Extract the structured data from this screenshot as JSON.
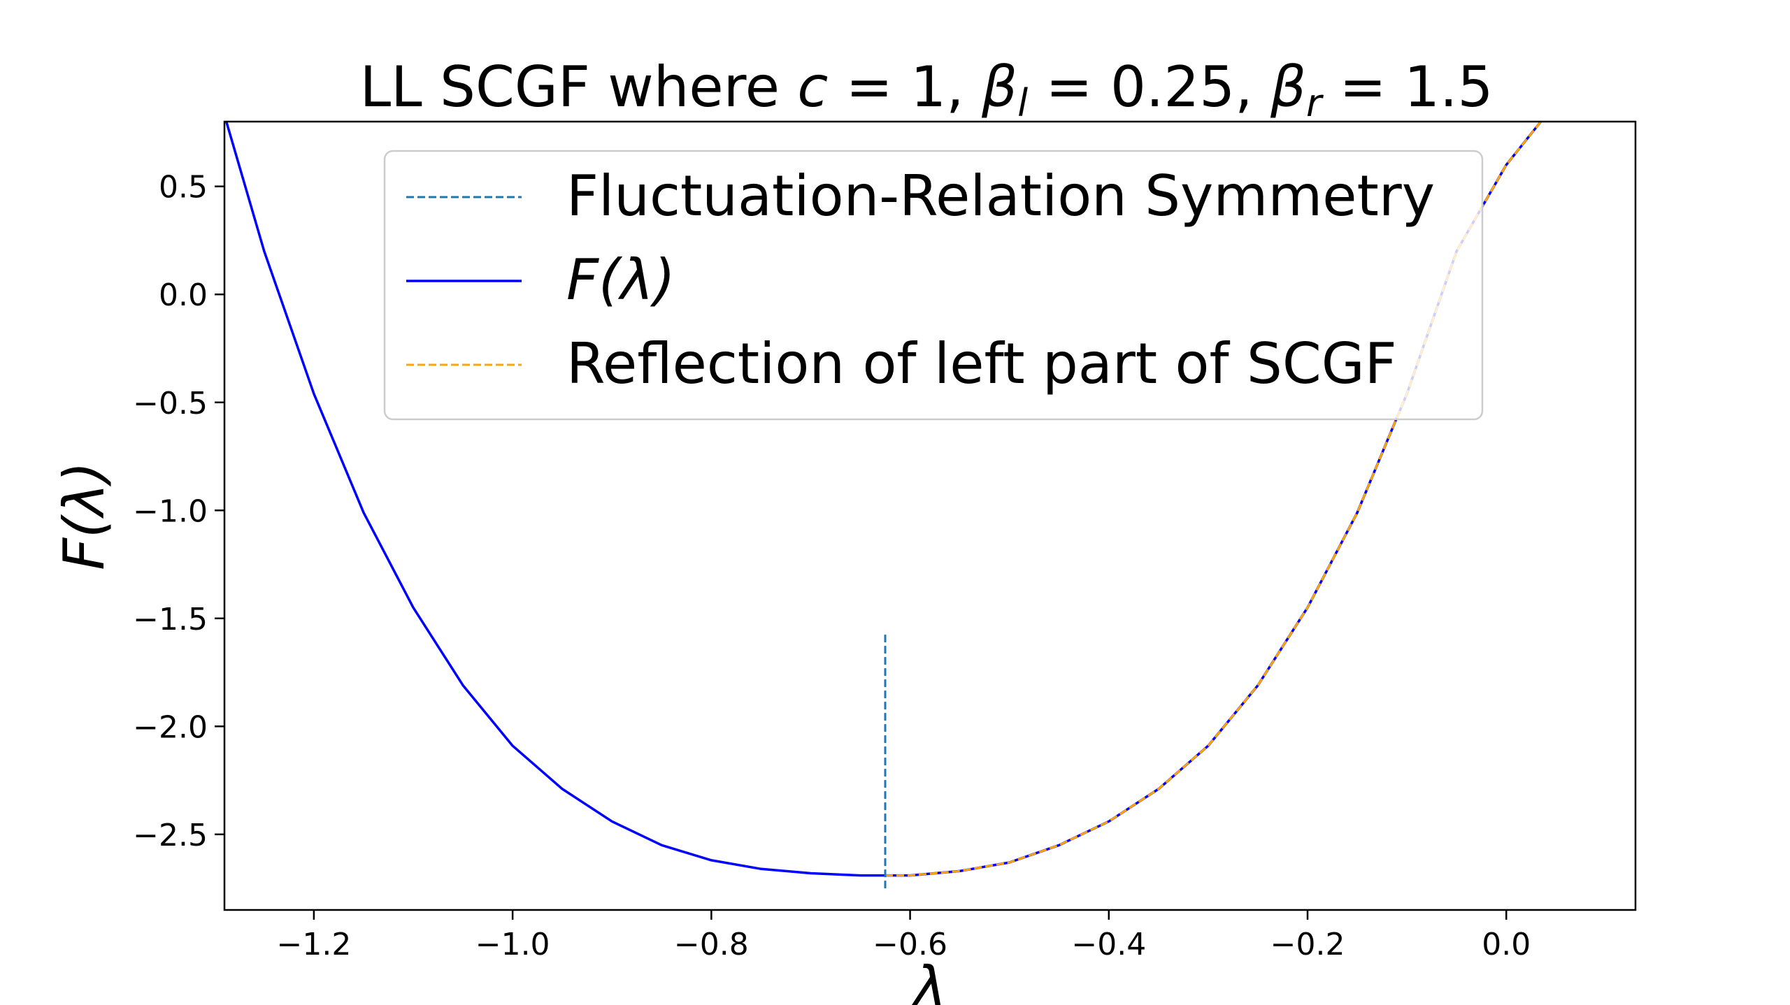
{
  "chart_data": {
    "type": "line",
    "title": {
      "prefix": "LL SCGF where ",
      "c_var": "c",
      "c_val": " = 1, ",
      "bl_var": "β",
      "bl_sub": "l",
      "bl_val": " = 0.25, ",
      "br_var": "β",
      "br_sub": "r",
      "br_val": " = 1.5"
    },
    "xlabel": "λ",
    "ylabel": "F(λ)",
    "xlim": [
      -1.29,
      0.13
    ],
    "ylim": [
      -2.85,
      0.8
    ],
    "xticks": [
      -1.2,
      -1.0,
      -0.8,
      -0.6,
      -0.4,
      -0.2,
      0.0
    ],
    "xtick_labels": [
      "−1.2",
      "−1.0",
      "−0.8",
      "−0.6",
      "−0.4",
      "−0.2",
      "0.0"
    ],
    "yticks": [
      0.5,
      0.0,
      -0.5,
      -1.0,
      -1.5,
      -2.0,
      -2.5
    ],
    "ytick_labels": [
      "0.5",
      "0.0",
      "−0.5",
      "−1.0",
      "−1.5",
      "−2.0",
      "−2.5"
    ],
    "grid": false,
    "legend_position": "top-center",
    "series": [
      {
        "name": "Fluctuation-Relation Symmetry",
        "style": "dashed",
        "color": "#1f77b4",
        "x": [
          -0.625,
          -0.625
        ],
        "y": [
          -2.75,
          -1.57
        ]
      },
      {
        "name": "F(λ)",
        "style": "solid",
        "color": "#0000ff",
        "x": [
          -1.29,
          -1.25,
          -1.2,
          -1.15,
          -1.1,
          -1.05,
          -1.0,
          -0.95,
          -0.9,
          -0.85,
          -0.8,
          -0.75,
          -0.7,
          -0.65,
          -0.625,
          -0.6,
          -0.55,
          -0.5,
          -0.45,
          -0.4,
          -0.35,
          -0.3,
          -0.25,
          -0.2,
          -0.15,
          -0.1,
          -0.05,
          0.0,
          0.04
        ],
        "y": [
          0.83,
          0.2,
          -0.46,
          -1.01,
          -1.45,
          -1.81,
          -2.09,
          -2.29,
          -2.44,
          -2.55,
          -2.62,
          -2.66,
          -2.68,
          -2.69,
          -2.69,
          -2.69,
          -2.67,
          -2.63,
          -2.55,
          -2.44,
          -2.29,
          -2.09,
          -1.81,
          -1.45,
          -1.01,
          -0.46,
          0.2,
          0.6,
          0.83
        ]
      },
      {
        "name": "Reflection of left part of SCGF",
        "style": "dashed",
        "color": "#ffa500",
        "x": [
          -0.625,
          -0.6,
          -0.55,
          -0.5,
          -0.45,
          -0.4,
          -0.35,
          -0.3,
          -0.25,
          -0.2,
          -0.15,
          -0.1,
          -0.05,
          0.0,
          0.04
        ],
        "y": [
          -2.69,
          -2.69,
          -2.67,
          -2.63,
          -2.55,
          -2.44,
          -2.29,
          -2.09,
          -1.81,
          -1.45,
          -1.01,
          -0.46,
          0.2,
          0.6,
          0.83
        ]
      }
    ]
  }
}
